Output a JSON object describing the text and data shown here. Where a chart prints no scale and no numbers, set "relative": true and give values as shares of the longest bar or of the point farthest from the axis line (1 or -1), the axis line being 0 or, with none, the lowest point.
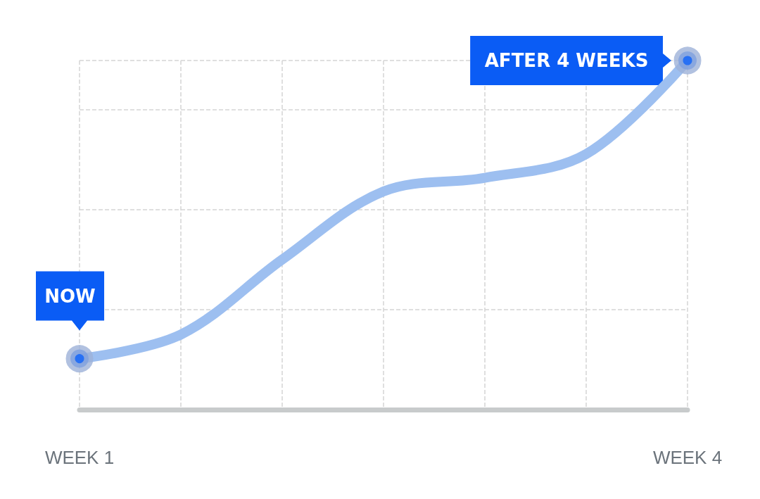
{
  "chart_data": {
    "type": "line",
    "relative": true,
    "categories": [
      "WEEK 1",
      null,
      null,
      null,
      null,
      null,
      "WEEK 4"
    ],
    "series": [
      {
        "color": "#9dbff0",
        "values": [
          0.146,
          0.215,
          0.43,
          0.625,
          0.664,
          0.732,
          1
        ],
        "marker": "none"
      },
      {
        "type": "scatter",
        "color": "#0a5cf5",
        "x": [
          "WEEK 1",
          "WEEK 4"
        ],
        "values": [
          0.146,
          1
        ],
        "marker": "circle"
      }
    ],
    "annotations": [
      {
        "text": "NOW",
        "x": "WEEK 1",
        "y": 0.146
      },
      {
        "text": "AFTER 4 WEEKS",
        "x": "WEEK 4",
        "y": 1
      }
    ],
    "grid": true,
    "line_style": "solid"
  }
}
